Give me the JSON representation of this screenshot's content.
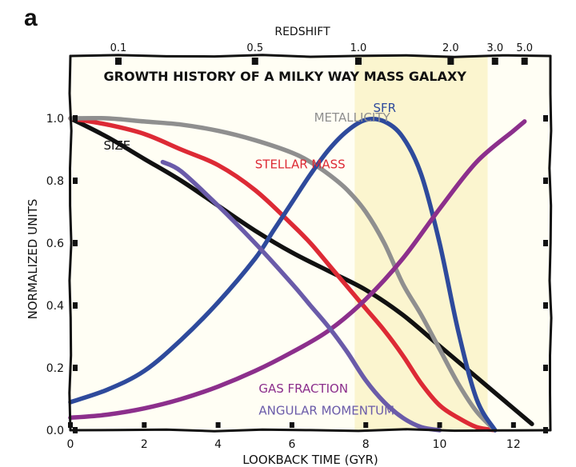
{
  "panel_letter": "a",
  "chart_data": {
    "type": "line",
    "title": "GROWTH HISTORY OF A MILKY WAY MASS GALAXY",
    "xlabel": "LOOKBACK TIME (GYR)",
    "ylabel": "NORMALIZED UNITS",
    "top_axis_label": "REDSHIFT",
    "xlim": [
      0,
      13.0
    ],
    "ylim": [
      0,
      1.2
    ],
    "x_ticks": [
      0,
      2,
      4,
      6,
      8,
      10,
      12
    ],
    "x_tick_labels": [
      "0",
      "2",
      "4",
      "6",
      "8",
      "10",
      "12"
    ],
    "y_ticks": [
      0.0,
      0.2,
      0.4,
      0.6,
      0.8,
      1.0
    ],
    "y_tick_labels": [
      "0.0",
      "0.2",
      "0.4",
      "0.6",
      "0.8",
      "1.0"
    ],
    "top_ticks": [
      {
        "label": "0.1",
        "x": 1.3
      },
      {
        "label": "0.5",
        "x": 5.0
      },
      {
        "label": "1.0",
        "x": 7.8
      },
      {
        "label": "2.0",
        "x": 10.3
      },
      {
        "label": "3.0",
        "x": 11.5
      },
      {
        "label": "5.0",
        "x": 12.3
      }
    ],
    "shaded_band": {
      "x_start": 7.7,
      "x_end": 11.3,
      "color": "#fbf5cf"
    },
    "background_color": "#fffef4",
    "series": [
      {
        "name": "SIZE",
        "color": "#111111",
        "label_pos": {
          "x": 0.9,
          "y": 0.9
        },
        "label_color": "#111111",
        "x": [
          0,
          1,
          2,
          3,
          4,
          5,
          6,
          7,
          8,
          9,
          10,
          11,
          12,
          12.5
        ],
        "y": [
          1.0,
          0.94,
          0.87,
          0.8,
          0.72,
          0.64,
          0.57,
          0.51,
          0.45,
          0.37,
          0.27,
          0.17,
          0.07,
          0.02
        ]
      },
      {
        "name": "STELLAR MASS",
        "color": "#dd2a35",
        "label_pos": {
          "x": 5.0,
          "y": 0.84
        },
        "label_color": "#dd2a35",
        "x": [
          0,
          1,
          2,
          3,
          4,
          5,
          6,
          6.5,
          7,
          7.5,
          8,
          8.5,
          9,
          9.5,
          10,
          10.5,
          11,
          11.5
        ],
        "y": [
          1.0,
          0.98,
          0.95,
          0.9,
          0.85,
          0.77,
          0.66,
          0.6,
          0.53,
          0.46,
          0.39,
          0.32,
          0.24,
          0.15,
          0.08,
          0.04,
          0.01,
          0.0
        ]
      },
      {
        "name": "METALLICITY",
        "color": "#8f8f8f",
        "label_pos": {
          "x": 6.6,
          "y": 0.99
        },
        "label_color": "#8f8f8f",
        "x": [
          0,
          1,
          2,
          3,
          4,
          5,
          6,
          6.5,
          7,
          7.5,
          8,
          8.5,
          9,
          9.5,
          10,
          10.5,
          11,
          11.5
        ],
        "y": [
          1.0,
          1.0,
          0.99,
          0.98,
          0.96,
          0.93,
          0.89,
          0.86,
          0.82,
          0.77,
          0.7,
          0.6,
          0.47,
          0.37,
          0.26,
          0.15,
          0.06,
          0.0
        ]
      },
      {
        "name": "SFR",
        "color": "#2e4a9c",
        "label_pos": {
          "x": 8.2,
          "y": 1.02
        },
        "label_color": "#2e4a9c",
        "x": [
          0,
          1,
          2,
          3,
          4,
          5,
          5.5,
          6,
          6.5,
          7,
          7.5,
          8,
          8.5,
          9,
          9.5,
          10,
          10.5,
          11,
          11.5
        ],
        "y": [
          0.09,
          0.13,
          0.19,
          0.29,
          0.41,
          0.55,
          0.64,
          0.73,
          0.82,
          0.9,
          0.96,
          0.995,
          0.99,
          0.94,
          0.82,
          0.6,
          0.32,
          0.1,
          0.0
        ]
      },
      {
        "name": "GAS FRACTION",
        "color": "#8c2f8c",
        "label_pos": {
          "x": 5.1,
          "y": 0.12
        },
        "label_color": "#8c2f8c",
        "x": [
          0,
          1,
          2,
          3,
          4,
          5,
          6,
          7,
          8,
          9,
          10,
          11,
          12,
          12.3
        ],
        "y": [
          0.04,
          0.05,
          0.07,
          0.1,
          0.14,
          0.19,
          0.25,
          0.32,
          0.42,
          0.55,
          0.71,
          0.86,
          0.96,
          0.99
        ]
      },
      {
        "name": "ANGULAR MOMENTUM",
        "color": "#6a5ba9",
        "label_pos": {
          "x": 5.1,
          "y": 0.05
        },
        "label_color": "#6a5ba9",
        "x": [
          2.5,
          3,
          4,
          5,
          6,
          6.5,
          7,
          7.5,
          8,
          8.5,
          9,
          9.5,
          10
        ],
        "y": [
          0.86,
          0.83,
          0.72,
          0.6,
          0.47,
          0.4,
          0.33,
          0.25,
          0.16,
          0.09,
          0.04,
          0.01,
          0.0
        ]
      }
    ]
  }
}
